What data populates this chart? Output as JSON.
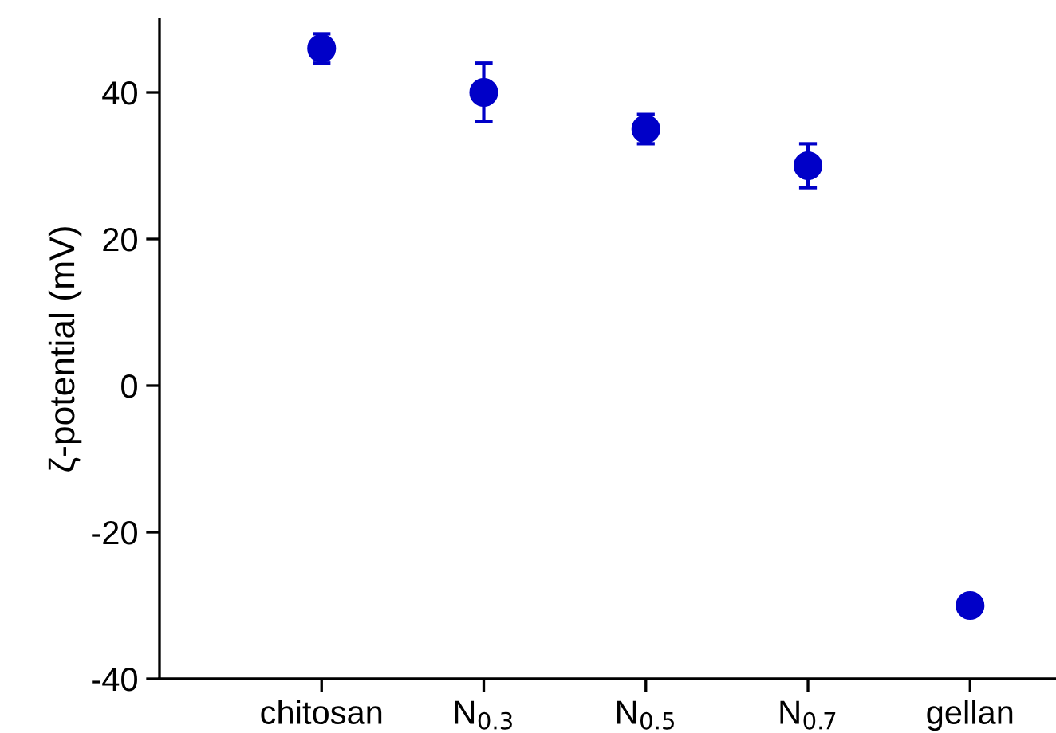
{
  "chart_data": {
    "type": "scatter",
    "ylabel": "ζ-potential (mV)",
    "categories": [
      "chitosan",
      "N$_{0.3}$",
      "N$_{0.5}$",
      "N$_{0.7}$",
      "gellan"
    ],
    "values": [
      46,
      40,
      35,
      30,
      -30
    ],
    "errors": [
      2,
      4,
      2,
      3,
      null
    ],
    "color": "#0000c8",
    "marker": "circle",
    "ylim": [
      -40,
      50
    ],
    "yticks": [
      -40,
      -20,
      0,
      20,
      40
    ],
    "grid": false
  }
}
